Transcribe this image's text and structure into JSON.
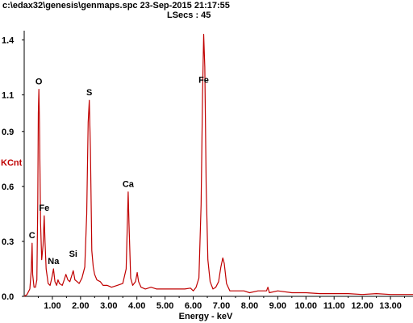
{
  "header": {
    "line1": "c:\\edax32\\genesis\\genmaps.spc  23-Sep-2015 21:17:55",
    "line2": "LSecs :  45"
  },
  "colors": {
    "spectrum": "#c00000",
    "axis": "#000000",
    "ylabel": "#c00000",
    "background": "#ffffff"
  },
  "chart_data": {
    "type": "line",
    "xlabel": "Energy - keV",
    "ylabel": "KCnt",
    "xlim": [
      0,
      13.8
    ],
    "ylim": [
      0,
      1.45
    ],
    "grid": false,
    "x_ticks": [
      1.0,
      2.0,
      3.0,
      4.0,
      5.0,
      6.0,
      7.0,
      8.0,
      9.0,
      10.0,
      11.0,
      12.0,
      13.0
    ],
    "x_tick_labels": [
      "1.00",
      "2.00",
      "3.00",
      "4.00",
      "5.00",
      "6.00",
      "7.00",
      "8.00",
      "9.00",
      "10.00",
      "11.00",
      "12.00",
      "13.00"
    ],
    "y_ticks": [
      0,
      0.3,
      0.6,
      0.9,
      1.1,
      1.4
    ],
    "y_tick_labels": [
      "0.0",
      "0.3",
      "0.6",
      "0.9",
      "1.1",
      "1.4"
    ],
    "series": [
      {
        "points": [
          [
            0.0,
            0.0
          ],
          [
            0.1,
            0.01
          ],
          [
            0.2,
            0.04
          ],
          [
            0.25,
            0.14
          ],
          [
            0.28,
            0.29
          ],
          [
            0.3,
            0.12
          ],
          [
            0.35,
            0.05
          ],
          [
            0.4,
            0.05
          ],
          [
            0.45,
            0.09
          ],
          [
            0.48,
            0.5
          ],
          [
            0.5,
            1.0
          ],
          [
            0.52,
            1.13
          ],
          [
            0.54,
            0.95
          ],
          [
            0.58,
            0.4
          ],
          [
            0.62,
            0.2
          ],
          [
            0.67,
            0.28
          ],
          [
            0.71,
            0.44
          ],
          [
            0.74,
            0.3
          ],
          [
            0.78,
            0.15
          ],
          [
            0.85,
            0.07
          ],
          [
            0.92,
            0.06
          ],
          [
            0.98,
            0.1
          ],
          [
            1.04,
            0.15
          ],
          [
            1.09,
            0.08
          ],
          [
            1.15,
            0.06
          ],
          [
            1.2,
            0.09
          ],
          [
            1.25,
            0.07
          ],
          [
            1.35,
            0.06
          ],
          [
            1.42,
            0.09
          ],
          [
            1.48,
            0.12
          ],
          [
            1.55,
            0.09
          ],
          [
            1.62,
            0.08
          ],
          [
            1.7,
            0.12
          ],
          [
            1.74,
            0.14
          ],
          [
            1.8,
            0.09
          ],
          [
            1.88,
            0.08
          ],
          [
            1.95,
            0.07
          ],
          [
            2.05,
            0.1
          ],
          [
            2.15,
            0.16
          ],
          [
            2.22,
            0.45
          ],
          [
            2.27,
            0.95
          ],
          [
            2.31,
            1.07
          ],
          [
            2.35,
            0.8
          ],
          [
            2.4,
            0.25
          ],
          [
            2.45,
            0.16
          ],
          [
            2.5,
            0.12
          ],
          [
            2.58,
            0.09
          ],
          [
            2.7,
            0.08
          ],
          [
            2.8,
            0.06
          ],
          [
            2.95,
            0.06
          ],
          [
            3.1,
            0.05
          ],
          [
            3.3,
            0.06
          ],
          [
            3.5,
            0.07
          ],
          [
            3.62,
            0.15
          ],
          [
            3.67,
            0.45
          ],
          [
            3.69,
            0.57
          ],
          [
            3.72,
            0.4
          ],
          [
            3.78,
            0.1
          ],
          [
            3.85,
            0.06
          ],
          [
            3.95,
            0.08
          ],
          [
            4.01,
            0.13
          ],
          [
            4.06,
            0.08
          ],
          [
            4.15,
            0.05
          ],
          [
            4.3,
            0.04
          ],
          [
            4.5,
            0.05
          ],
          [
            4.7,
            0.04
          ],
          [
            4.9,
            0.04
          ],
          [
            5.1,
            0.04
          ],
          [
            5.3,
            0.04
          ],
          [
            5.5,
            0.04
          ],
          [
            5.7,
            0.04
          ],
          [
            5.9,
            0.045
          ],
          [
            6.0,
            0.03
          ],
          [
            6.1,
            0.05
          ],
          [
            6.2,
            0.1
          ],
          [
            6.28,
            0.5
          ],
          [
            6.33,
            1.1
          ],
          [
            6.37,
            1.43
          ],
          [
            6.41,
            1.25
          ],
          [
            6.46,
            0.6
          ],
          [
            6.52,
            0.2
          ],
          [
            6.6,
            0.08
          ],
          [
            6.7,
            0.04
          ],
          [
            6.8,
            0.05
          ],
          [
            6.9,
            0.08
          ],
          [
            6.98,
            0.16
          ],
          [
            7.05,
            0.21
          ],
          [
            7.1,
            0.18
          ],
          [
            7.18,
            0.07
          ],
          [
            7.3,
            0.03
          ],
          [
            7.5,
            0.03
          ],
          [
            7.8,
            0.03
          ],
          [
            8.0,
            0.02
          ],
          [
            8.3,
            0.03
          ],
          [
            8.6,
            0.03
          ],
          [
            8.65,
            0.05
          ],
          [
            8.7,
            0.02
          ],
          [
            9.0,
            0.03
          ],
          [
            9.5,
            0.02
          ],
          [
            10.0,
            0.02
          ],
          [
            10.5,
            0.015
          ],
          [
            11.0,
            0.015
          ],
          [
            11.5,
            0.015
          ],
          [
            12.0,
            0.01
          ],
          [
            12.5,
            0.015
          ],
          [
            13.0,
            0.01
          ],
          [
            13.5,
            0.01
          ],
          [
            13.8,
            0.01
          ]
        ]
      }
    ],
    "annotations": [
      {
        "text": "O",
        "x": 0.52,
        "y": 1.13
      },
      {
        "text": "S",
        "x": 2.31,
        "y": 1.07
      },
      {
        "text": "Fe",
        "x": 6.37,
        "y": 1.14
      },
      {
        "text": "Ca",
        "x": 3.69,
        "y": 0.57
      },
      {
        "text": "Fe",
        "x": 0.71,
        "y": 0.44
      },
      {
        "text": "C",
        "x": 0.28,
        "y": 0.29
      },
      {
        "text": "Na",
        "x": 1.04,
        "y": 0.15
      },
      {
        "text": "Si",
        "x": 1.74,
        "y": 0.19
      }
    ]
  }
}
